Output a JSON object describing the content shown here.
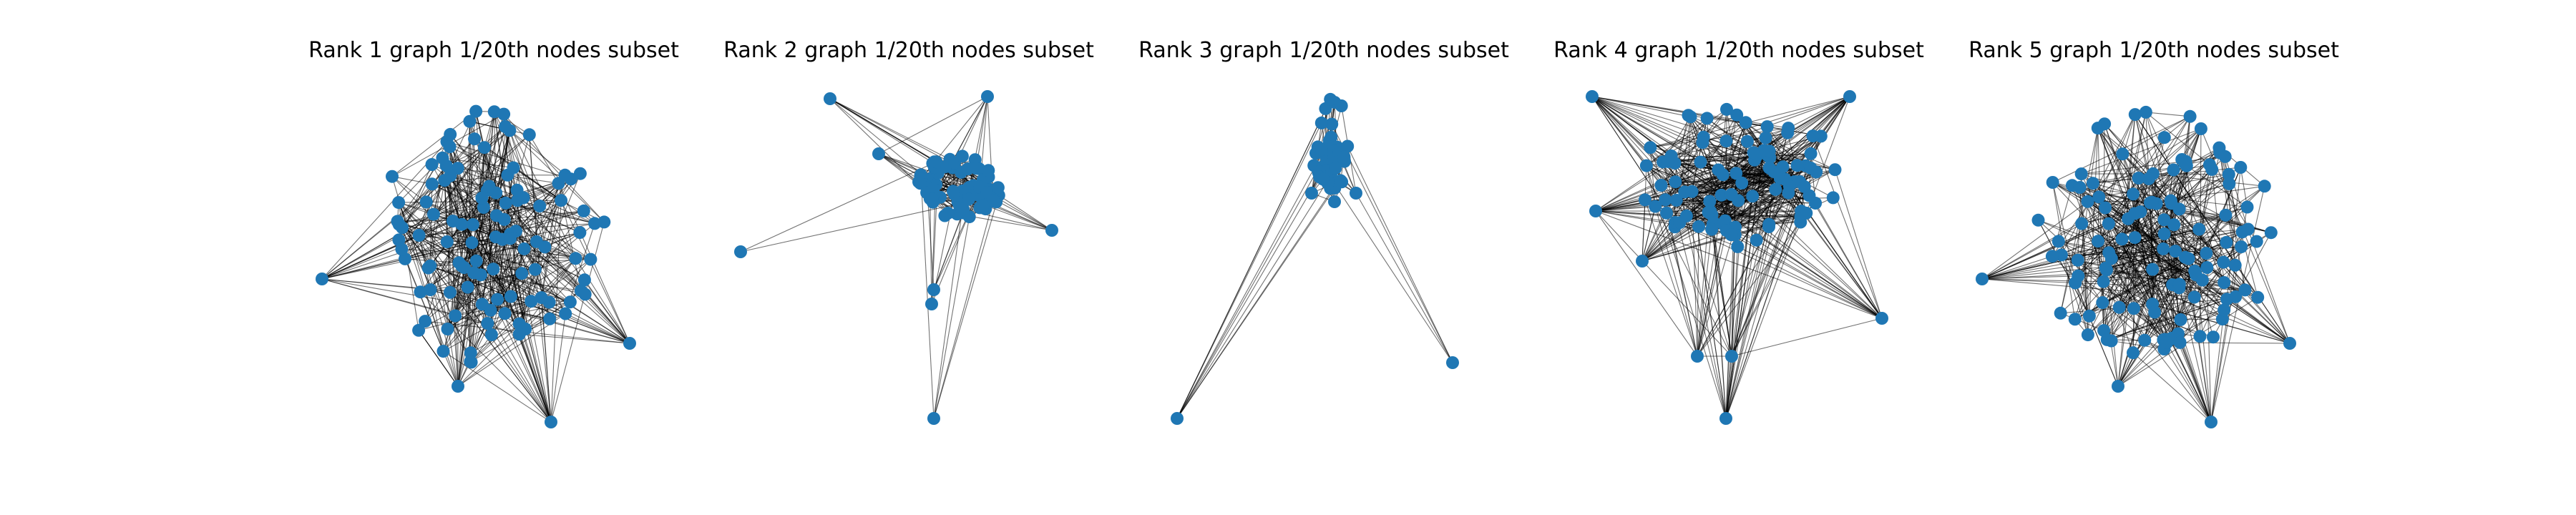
{
  "figure": {
    "panels": [
      {
        "title": "Rank 1 graph 1/20th nodes subset",
        "seed": 11,
        "style": "ball",
        "node_count": 110
      },
      {
        "title": "Rank 2 graph 1/20th nodes subset",
        "seed": 23,
        "style": "star",
        "node_count": 70
      },
      {
        "title": "Rank 3 graph 1/20th nodes subset",
        "seed": 37,
        "style": "tight",
        "node_count": 45
      },
      {
        "title": "Rank 4 graph 1/20th nodes subset",
        "seed": 41,
        "style": "fan",
        "node_count": 95
      },
      {
        "title": "Rank 5 graph 1/20th nodes subset",
        "seed": 53,
        "style": "ball",
        "node_count": 120
      }
    ],
    "colors": {
      "node": "#1f77b4",
      "edge": "#000000",
      "background": "#ffffff"
    }
  }
}
